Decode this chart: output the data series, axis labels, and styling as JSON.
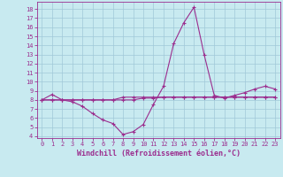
{
  "xlabel": "Windchill (Refroidissement éolien,°C)",
  "background_color": "#c8eaf0",
  "line_color": "#9b2d8e",
  "xlim": [
    -0.5,
    23.5
  ],
  "ylim": [
    3.8,
    18.8
  ],
  "yticks": [
    4,
    5,
    6,
    7,
    8,
    9,
    10,
    11,
    12,
    13,
    14,
    15,
    16,
    17,
    18
  ],
  "xticks": [
    0,
    1,
    2,
    3,
    4,
    5,
    6,
    7,
    8,
    9,
    10,
    11,
    12,
    13,
    14,
    15,
    16,
    17,
    18,
    19,
    20,
    21,
    22,
    23
  ],
  "series": [
    [
      8.0,
      8.6,
      8.0,
      7.8,
      7.3,
      6.5,
      5.8,
      5.4,
      4.2,
      4.5,
      5.3,
      7.5,
      9.5,
      14.2,
      16.5,
      18.2,
      13.0,
      8.5,
      8.2,
      8.5,
      8.8,
      9.2,
      9.5,
      9.2
    ],
    [
      8.0,
      8.0,
      8.0,
      8.0,
      8.0,
      8.0,
      8.0,
      8.0,
      8.0,
      8.0,
      8.2,
      8.2,
      8.3,
      8.3,
      8.3,
      8.3,
      8.3,
      8.3,
      8.3,
      8.3,
      8.3,
      8.3,
      8.3,
      8.3
    ],
    [
      8.0,
      8.0,
      8.0,
      8.0,
      8.0,
      8.0,
      8.0,
      8.0,
      8.3,
      8.3,
      8.3,
      8.3,
      8.3,
      8.3,
      8.3,
      8.3,
      8.3,
      8.3,
      8.3,
      8.3,
      8.3,
      8.3,
      8.3,
      8.3
    ]
  ],
  "grid_color": "#a0c8d8",
  "marker": "+",
  "marker_size": 3,
  "line_width": 0.8,
  "font_color": "#9b2d8e",
  "tick_fontsize": 5,
  "xlabel_fontsize": 6
}
